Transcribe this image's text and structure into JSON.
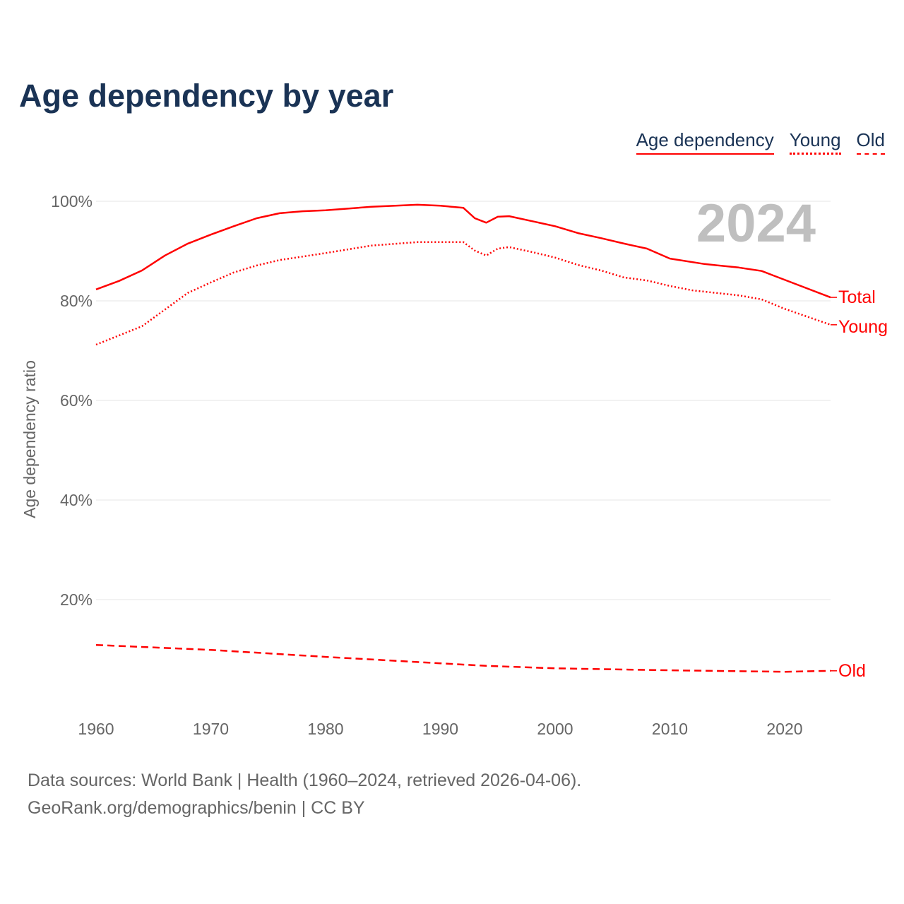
{
  "chart_data": {
    "type": "line",
    "title": "Age dependency by year",
    "xlabel": "",
    "ylabel": "Age dependency ratio",
    "xlim": [
      1960,
      2024
    ],
    "ylim": [
      0,
      100
    ],
    "x_ticks": [
      "1960",
      "1970",
      "1980",
      "1990",
      "2000",
      "2010",
      "2020"
    ],
    "y_ticks": [
      "20%",
      "40%",
      "60%",
      "80%",
      "100%"
    ],
    "year_label": "2024",
    "legend": [
      "Age dependency",
      "Young",
      "Old"
    ],
    "legend_placement": "top-right",
    "series": [
      {
        "name": "Total",
        "style": "solid",
        "x": [
          1960,
          1962,
          1964,
          1966,
          1968,
          1970,
          1972,
          1974,
          1976,
          1978,
          1980,
          1984,
          1988,
          1990,
          1992,
          1993,
          1994,
          1995,
          1996,
          1998,
          2000,
          2002,
          2004,
          2006,
          2008,
          2010,
          2013,
          2016,
          2018,
          2019,
          2024
        ],
        "y": [
          82.3,
          84.0,
          86.1,
          89.1,
          91.5,
          93.3,
          95.0,
          96.6,
          97.6,
          98.0,
          98.2,
          98.9,
          99.3,
          99.1,
          98.7,
          96.6,
          95.7,
          96.9,
          97.0,
          96.0,
          95.0,
          93.6,
          92.6,
          91.5,
          90.5,
          88.5,
          87.4,
          86.7,
          86.0,
          85.1,
          80.7
        ]
      },
      {
        "name": "Young",
        "style": "dotted",
        "x": [
          1960,
          1964,
          1968,
          1970,
          1972,
          1974,
          1976,
          1978,
          1980,
          1984,
          1988,
          1992,
          1993,
          1994,
          1995,
          1996,
          1998,
          2000,
          2002,
          2004,
          2006,
          2008,
          2010,
          2012,
          2016,
          2018,
          2020,
          2024
        ],
        "y": [
          71.2,
          74.9,
          81.6,
          83.7,
          85.7,
          87.1,
          88.2,
          88.9,
          89.6,
          91.1,
          91.8,
          91.8,
          90.1,
          89.1,
          90.5,
          90.8,
          89.8,
          88.7,
          87.2,
          86.1,
          84.7,
          84.1,
          83.0,
          82.1,
          81.1,
          80.3,
          78.4,
          75.2
        ]
      },
      {
        "name": "Old",
        "style": "dashed",
        "x": [
          1960,
          1970,
          1980,
          1990,
          1994,
          2000,
          2010,
          2020,
          2024
        ],
        "y": [
          10.9,
          9.9,
          8.5,
          7.2,
          6.7,
          6.2,
          5.8,
          5.5,
          5.7
        ]
      }
    ]
  },
  "footer": {
    "line1": "Data sources: World Bank | Health (1960–2024, retrieved 2026-04-06).",
    "line2": "GeoRank.org/demographics/benin | CC BY"
  }
}
